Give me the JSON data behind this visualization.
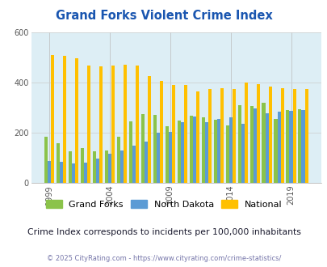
{
  "title": "Grand Forks Violent Crime Index",
  "years": [
    1999,
    2000,
    2001,
    2002,
    2003,
    2004,
    2005,
    2006,
    2007,
    2008,
    2009,
    2010,
    2011,
    2012,
    2013,
    2014,
    2015,
    2016,
    2017,
    2018,
    2019,
    2020
  ],
  "grand_forks": [
    185,
    158,
    125,
    140,
    125,
    130,
    185,
    245,
    275,
    270,
    225,
    248,
    268,
    262,
    252,
    228,
    308,
    305,
    318,
    255,
    290,
    292
  ],
  "north_dakota": [
    88,
    83,
    78,
    82,
    98,
    115,
    128,
    148,
    165,
    200,
    202,
    242,
    263,
    242,
    255,
    262,
    235,
    297,
    278,
    282,
    288,
    290
  ],
  "national": [
    510,
    505,
    495,
    467,
    462,
    467,
    470,
    467,
    425,
    405,
    390,
    390,
    365,
    375,
    378,
    375,
    398,
    393,
    383,
    378,
    375,
    375
  ],
  "bar_colors": [
    "#8bc34a",
    "#5b9bd5",
    "#ffc000"
  ],
  "background_color": "#ddeef5",
  "fig_background": "#ffffff",
  "ylim": [
    0,
    600
  ],
  "yticks": [
    0,
    200,
    400,
    600
  ],
  "title_color": "#1a56b0",
  "legend_labels": [
    "Grand Forks",
    "North Dakota",
    "National"
  ],
  "subtitle": "Crime Index corresponds to incidents per 100,000 inhabitants",
  "footer": "© 2025 CityRating.com - https://www.cityrating.com/crime-statistics/",
  "subtitle_color": "#1a1a2e",
  "footer_color": "#7777aa",
  "tick_years": [
    1999,
    2004,
    2009,
    2014,
    2019
  ]
}
